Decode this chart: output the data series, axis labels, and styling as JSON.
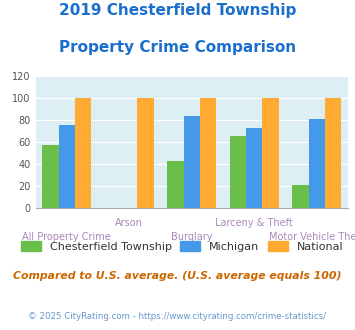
{
  "title_line1": "2019 Chesterfield Township",
  "title_line2": "Property Crime Comparison",
  "title_color": "#1a6fcc",
  "categories": [
    "All Property Crime",
    "Arson",
    "Burglary",
    "Larceny & Theft",
    "Motor Vehicle Theft"
  ],
  "chesterfield": [
    57,
    0,
    43,
    65,
    21
  ],
  "michigan": [
    75,
    0,
    84,
    73,
    81
  ],
  "national": [
    100,
    100,
    100,
    100,
    100
  ],
  "color_chesterfield": "#6abf4b",
  "color_michigan": "#4499e8",
  "color_national": "#ffaa33",
  "ylim": [
    0,
    120
  ],
  "yticks": [
    0,
    20,
    40,
    60,
    80,
    100,
    120
  ],
  "background_color": "#ddeef5",
  "note": "Compared to U.S. average. (U.S. average equals 100)",
  "footer": "© 2025 CityRating.com - https://www.cityrating.com/crime-statistics/",
  "note_color": "#cc6600",
  "footer_color": "#6699cc",
  "xlabel_color": "#aa88bb",
  "bar_width": 0.26
}
